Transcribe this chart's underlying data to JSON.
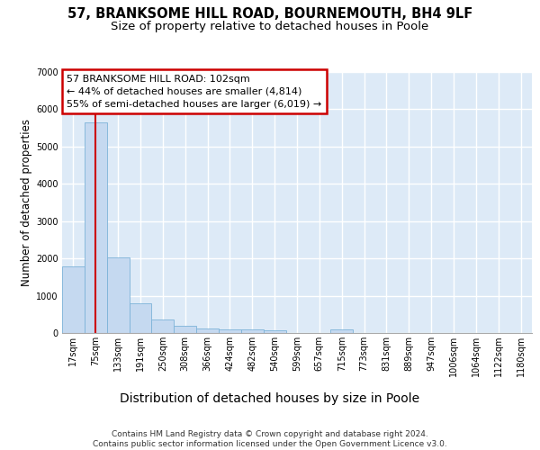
{
  "title_line1": "57, BRANKSOME HILL ROAD, BOURNEMOUTH, BH4 9LF",
  "title_line2": "Size of property relative to detached houses in Poole",
  "xlabel": "Distribution of detached houses by size in Poole",
  "ylabel": "Number of detached properties",
  "categories": [
    "17sqm",
    "75sqm",
    "133sqm",
    "191sqm",
    "250sqm",
    "308sqm",
    "366sqm",
    "424sqm",
    "482sqm",
    "540sqm",
    "599sqm",
    "657sqm",
    "715sqm",
    "773sqm",
    "831sqm",
    "889sqm",
    "947sqm",
    "1006sqm",
    "1064sqm",
    "1122sqm",
    "1180sqm"
  ],
  "values": [
    1780,
    5660,
    2020,
    800,
    360,
    200,
    110,
    95,
    90,
    70,
    0,
    0,
    100,
    0,
    0,
    0,
    0,
    0,
    0,
    0,
    0
  ],
  "bar_color": "#c5d9f0",
  "bar_edge_color": "#7db3d8",
  "red_line_color": "#cc0000",
  "annotation_text": "57 BRANKSOME HILL ROAD: 102sqm\n← 44% of detached houses are smaller (4,814)\n55% of semi-detached houses are larger (6,019) →",
  "annotation_box_facecolor": "white",
  "annotation_box_edgecolor": "#cc0000",
  "ylim": [
    0,
    7000
  ],
  "yticks": [
    0,
    1000,
    2000,
    3000,
    4000,
    5000,
    6000,
    7000
  ],
  "background_color": "#ddeaf7",
  "grid_color": "#ffffff",
  "footnote": "Contains HM Land Registry data © Crown copyright and database right 2024.\nContains public sector information licensed under the Open Government Licence v3.0.",
  "title_fontsize": 10.5,
  "subtitle_fontsize": 9.5,
  "xlabel_fontsize": 10,
  "ylabel_fontsize": 8.5,
  "tick_fontsize": 7,
  "annot_fontsize": 8,
  "footnote_fontsize": 6.5
}
